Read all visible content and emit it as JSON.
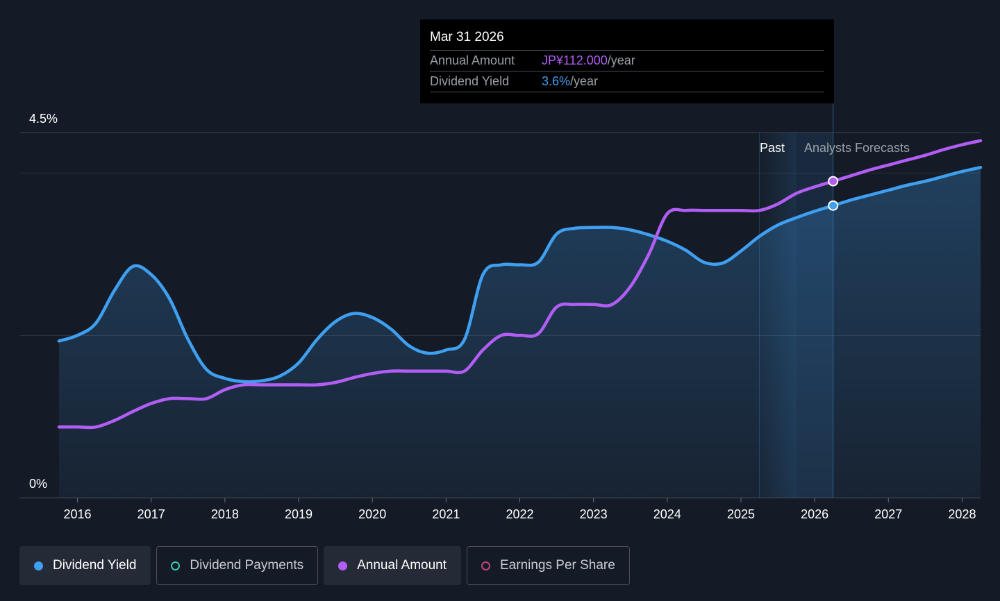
{
  "tooltip": {
    "date": "Mar 31 2026",
    "rows": [
      {
        "label": "Annual Amount",
        "value": "JP¥112.000",
        "unit": "/year"
      },
      {
        "label": "Dividend Yield",
        "value": "3.6%",
        "unit": "/year"
      }
    ]
  },
  "labels": {
    "past": "Past",
    "forecast": "Analysts Forecasts"
  },
  "legend": [
    {
      "label": "Dividend Yield",
      "color": "#3f9ff0",
      "state": "active",
      "marker": "filled"
    },
    {
      "label": "Dividend Payments",
      "color": "#3cc9b0",
      "state": "inactive",
      "marker": "hollow"
    },
    {
      "label": "Annual Amount",
      "color": "#b25ef5",
      "state": "active",
      "marker": "filled"
    },
    {
      "label": "Earnings Per Share",
      "color": "#c2437c",
      "state": "inactive",
      "marker": "hollow"
    }
  ],
  "colors": {
    "yield": "#3f9ff0",
    "amount": "#b25ef5",
    "background": "#151b26"
  },
  "chart_data": {
    "type": "line",
    "y_ticks": [
      "0%",
      "4.5%"
    ],
    "ylim": [
      0,
      4.5
    ],
    "xlim": [
      2015.75,
      2028.25
    ],
    "x_ticks": [
      "2016",
      "2017",
      "2018",
      "2019",
      "2020",
      "2021",
      "2022",
      "2023",
      "2024",
      "2025",
      "2026",
      "2027",
      "2028"
    ],
    "past_end": 2025.25,
    "forecast_start": 2025.75,
    "highlight_x": 2026.25,
    "highlight_values": {
      "yield": 3.6,
      "amount": 3.9
    },
    "grid": true,
    "series": [
      {
        "name": "Dividend Yield",
        "key": "yield",
        "fill": true,
        "points": [
          [
            2015.75,
            1.93
          ],
          [
            2016.0,
            2.0
          ],
          [
            2016.25,
            2.15
          ],
          [
            2016.5,
            2.55
          ],
          [
            2016.75,
            2.85
          ],
          [
            2017.0,
            2.75
          ],
          [
            2017.25,
            2.45
          ],
          [
            2017.5,
            1.95
          ],
          [
            2017.75,
            1.58
          ],
          [
            2018.0,
            1.47
          ],
          [
            2018.25,
            1.43
          ],
          [
            2018.5,
            1.44
          ],
          [
            2018.75,
            1.5
          ],
          [
            2019.0,
            1.66
          ],
          [
            2019.25,
            1.95
          ],
          [
            2019.5,
            2.17
          ],
          [
            2019.75,
            2.27
          ],
          [
            2020.0,
            2.22
          ],
          [
            2020.25,
            2.08
          ],
          [
            2020.5,
            1.87
          ],
          [
            2020.75,
            1.78
          ],
          [
            2021.0,
            1.82
          ],
          [
            2021.25,
            1.95
          ],
          [
            2021.5,
            2.75
          ],
          [
            2021.75,
            2.87
          ],
          [
            2022.0,
            2.87
          ],
          [
            2022.25,
            2.9
          ],
          [
            2022.5,
            3.25
          ],
          [
            2022.75,
            3.32
          ],
          [
            2023.0,
            3.33
          ],
          [
            2023.25,
            3.33
          ],
          [
            2023.5,
            3.3
          ],
          [
            2023.75,
            3.24
          ],
          [
            2024.0,
            3.16
          ],
          [
            2024.25,
            3.05
          ],
          [
            2024.5,
            2.9
          ],
          [
            2024.75,
            2.89
          ],
          [
            2025.0,
            3.04
          ],
          [
            2025.25,
            3.22
          ],
          [
            2025.5,
            3.36
          ],
          [
            2025.75,
            3.45
          ],
          [
            2026.0,
            3.53
          ],
          [
            2026.25,
            3.6
          ],
          [
            2026.5,
            3.67
          ],
          [
            2026.75,
            3.73
          ],
          [
            2027.0,
            3.79
          ],
          [
            2027.25,
            3.85
          ],
          [
            2027.5,
            3.9
          ],
          [
            2027.75,
            3.96
          ],
          [
            2028.0,
            4.02
          ],
          [
            2028.25,
            4.07
          ]
        ]
      },
      {
        "name": "Annual Amount",
        "key": "amount",
        "fill": false,
        "points": [
          [
            2015.75,
            0.87
          ],
          [
            2016.0,
            0.87
          ],
          [
            2016.25,
            0.87
          ],
          [
            2016.5,
            0.95
          ],
          [
            2016.75,
            1.06
          ],
          [
            2017.0,
            1.16
          ],
          [
            2017.25,
            1.22
          ],
          [
            2017.5,
            1.22
          ],
          [
            2017.75,
            1.22
          ],
          [
            2018.0,
            1.33
          ],
          [
            2018.25,
            1.39
          ],
          [
            2018.5,
            1.39
          ],
          [
            2018.75,
            1.39
          ],
          [
            2019.0,
            1.39
          ],
          [
            2019.25,
            1.39
          ],
          [
            2019.5,
            1.42
          ],
          [
            2019.75,
            1.48
          ],
          [
            2020.0,
            1.53
          ],
          [
            2020.25,
            1.56
          ],
          [
            2020.5,
            1.56
          ],
          [
            2020.75,
            1.56
          ],
          [
            2021.0,
            1.56
          ],
          [
            2021.25,
            1.56
          ],
          [
            2021.5,
            1.82
          ],
          [
            2021.75,
            2.0
          ],
          [
            2022.0,
            2.0
          ],
          [
            2022.25,
            2.02
          ],
          [
            2022.5,
            2.35
          ],
          [
            2022.75,
            2.38
          ],
          [
            2023.0,
            2.38
          ],
          [
            2023.25,
            2.38
          ],
          [
            2023.5,
            2.6
          ],
          [
            2023.75,
            3.0
          ],
          [
            2024.0,
            3.5
          ],
          [
            2024.25,
            3.54
          ],
          [
            2024.5,
            3.54
          ],
          [
            2024.75,
            3.54
          ],
          [
            2025.0,
            3.54
          ],
          [
            2025.25,
            3.54
          ],
          [
            2025.5,
            3.62
          ],
          [
            2025.75,
            3.75
          ],
          [
            2026.0,
            3.83
          ],
          [
            2026.25,
            3.9
          ],
          [
            2026.5,
            3.97
          ],
          [
            2026.75,
            4.04
          ],
          [
            2027.0,
            4.1
          ],
          [
            2027.25,
            4.16
          ],
          [
            2027.5,
            4.22
          ],
          [
            2027.75,
            4.29
          ],
          [
            2028.0,
            4.35
          ],
          [
            2028.25,
            4.4
          ]
        ]
      }
    ]
  }
}
